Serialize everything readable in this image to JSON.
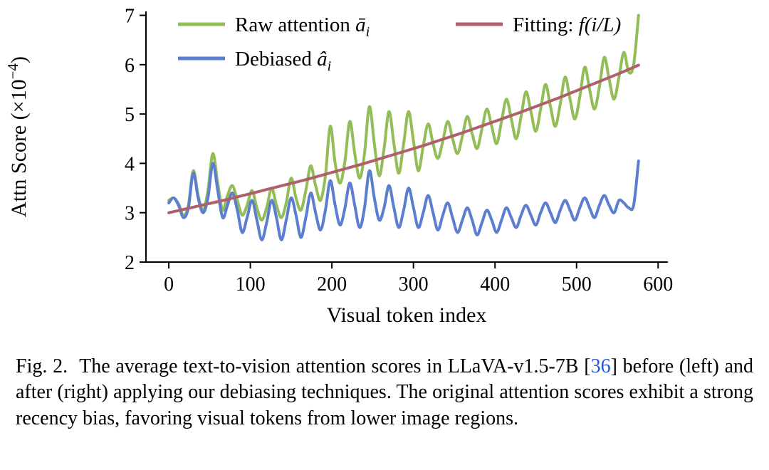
{
  "figure": {
    "caption": {
      "prefix": "Fig. 2.",
      "before_cite": "The average text-to-vision attention scores in LLaVA-v1.5-7B [",
      "cite": "36",
      "after_cite": "] before (left) and after (right) applying our debiasing techniques. The original attention scores exhibit a strong recency bias, favoring visual tokens from lower image regions.",
      "cite_color": "#2457d6"
    }
  },
  "chart_data": {
    "type": "line",
    "title": "",
    "xlabel": "Visual token index",
    "ylabel": "Attn Score (×10⁻⁴)",
    "ylabel_parts": {
      "text": "Attn Score (×10",
      "exp": "−4",
      "close": ")"
    },
    "xlim": [
      -28,
      612
    ],
    "ylim": [
      2,
      7.08
    ],
    "xticks": [
      0,
      100,
      200,
      300,
      400,
      500,
      600
    ],
    "yticks": [
      2,
      3,
      4,
      5,
      6,
      7
    ],
    "grid": false,
    "legend_position": "upper-left-two-columns",
    "legend": {
      "raw": {
        "text": "Raw attention ",
        "math": "ā",
        "sub": "i"
      },
      "debiased": {
        "text": "Debiased ",
        "math": "â",
        "sub": "i"
      },
      "fitting": {
        "text": "Fitting:  ",
        "math": "f(i/L)"
      }
    },
    "x": [
      0,
      6,
      12,
      18,
      24,
      30,
      36,
      42,
      48,
      54,
      60,
      66,
      72,
      78,
      84,
      90,
      96,
      102,
      108,
      114,
      120,
      126,
      132,
      138,
      144,
      150,
      156,
      162,
      168,
      174,
      180,
      186,
      192,
      198,
      204,
      210,
      216,
      222,
      228,
      234,
      240,
      246,
      252,
      258,
      264,
      270,
      276,
      282,
      288,
      294,
      300,
      306,
      312,
      318,
      324,
      330,
      336,
      342,
      348,
      354,
      360,
      366,
      372,
      378,
      384,
      390,
      396,
      402,
      408,
      414,
      420,
      426,
      432,
      438,
      444,
      450,
      456,
      462,
      468,
      474,
      480,
      486,
      492,
      498,
      504,
      510,
      516,
      522,
      528,
      534,
      540,
      546,
      552,
      558,
      564,
      570,
      576
    ],
    "series": [
      {
        "id": "raw-attention",
        "name": "Raw attention ā_i",
        "color": "#92bd57",
        "width": 4,
        "y": [
          3.25,
          3.3,
          3.18,
          2.95,
          3.15,
          3.85,
          3.35,
          3.05,
          3.45,
          4.2,
          3.6,
          3.05,
          3.35,
          3.55,
          3.25,
          2.95,
          3.15,
          3.45,
          3.1,
          2.85,
          3.1,
          3.5,
          3.15,
          2.9,
          3.2,
          3.7,
          3.3,
          3.05,
          3.45,
          3.95,
          3.55,
          3.25,
          3.75,
          4.75,
          4.0,
          3.6,
          4.05,
          4.85,
          4.2,
          3.7,
          4.2,
          5.15,
          4.4,
          3.75,
          4.3,
          5.05,
          4.4,
          3.8,
          4.4,
          5.05,
          4.45,
          3.85,
          4.35,
          4.8,
          4.4,
          4.1,
          4.45,
          4.85,
          4.5,
          4.2,
          4.55,
          4.95,
          4.6,
          4.3,
          4.7,
          5.1,
          4.75,
          4.4,
          4.85,
          5.3,
          4.9,
          4.5,
          4.95,
          5.45,
          5.05,
          4.65,
          5.1,
          5.6,
          5.15,
          4.75,
          5.2,
          5.75,
          5.3,
          4.9,
          5.35,
          5.95,
          5.5,
          5.1,
          5.55,
          6.15,
          5.7,
          5.3,
          5.75,
          6.25,
          5.85,
          6.0,
          7.0
        ]
      },
      {
        "id": "debiased",
        "name": "Debiased â_i",
        "color": "#5b7ed1",
        "width": 4,
        "y": [
          3.2,
          3.3,
          3.15,
          2.9,
          3.1,
          3.8,
          3.3,
          3.0,
          3.3,
          4.0,
          3.45,
          2.9,
          3.15,
          3.4,
          3.05,
          2.6,
          2.9,
          3.25,
          2.85,
          2.45,
          2.8,
          3.25,
          2.9,
          2.45,
          2.85,
          3.3,
          2.95,
          2.5,
          2.9,
          3.4,
          3.0,
          2.65,
          3.05,
          3.65,
          3.15,
          2.75,
          3.1,
          3.6,
          3.15,
          2.7,
          3.1,
          3.85,
          3.3,
          2.85,
          3.1,
          3.55,
          3.1,
          2.7,
          3.05,
          3.5,
          3.1,
          2.7,
          3.0,
          3.35,
          3.0,
          2.65,
          2.95,
          3.2,
          2.9,
          2.6,
          2.85,
          3.1,
          2.85,
          2.55,
          2.8,
          3.05,
          2.85,
          2.6,
          2.85,
          3.1,
          2.9,
          2.7,
          2.95,
          3.15,
          2.95,
          2.75,
          3.0,
          3.2,
          3.0,
          2.8,
          3.05,
          3.25,
          3.05,
          2.85,
          3.1,
          3.3,
          3.1,
          2.9,
          3.15,
          3.35,
          3.15,
          3.0,
          3.25,
          3.2,
          3.1,
          3.15,
          4.05
        ]
      },
      {
        "id": "fitting-curve",
        "name": "Fitting: f(i/L)",
        "color": "#b0606a",
        "width": 4,
        "x": [
          0,
          24,
          48,
          72,
          96,
          120,
          144,
          168,
          192,
          216,
          240,
          264,
          288,
          312,
          336,
          360,
          384,
          408,
          432,
          456,
          480,
          504,
          528,
          552,
          576
        ],
        "y": [
          3.0,
          3.09,
          3.18,
          3.27,
          3.37,
          3.47,
          3.57,
          3.67,
          3.78,
          3.89,
          4.0,
          4.12,
          4.24,
          4.36,
          4.49,
          4.62,
          4.76,
          4.9,
          5.04,
          5.19,
          5.34,
          5.5,
          5.66,
          5.82,
          5.99
        ]
      }
    ]
  }
}
